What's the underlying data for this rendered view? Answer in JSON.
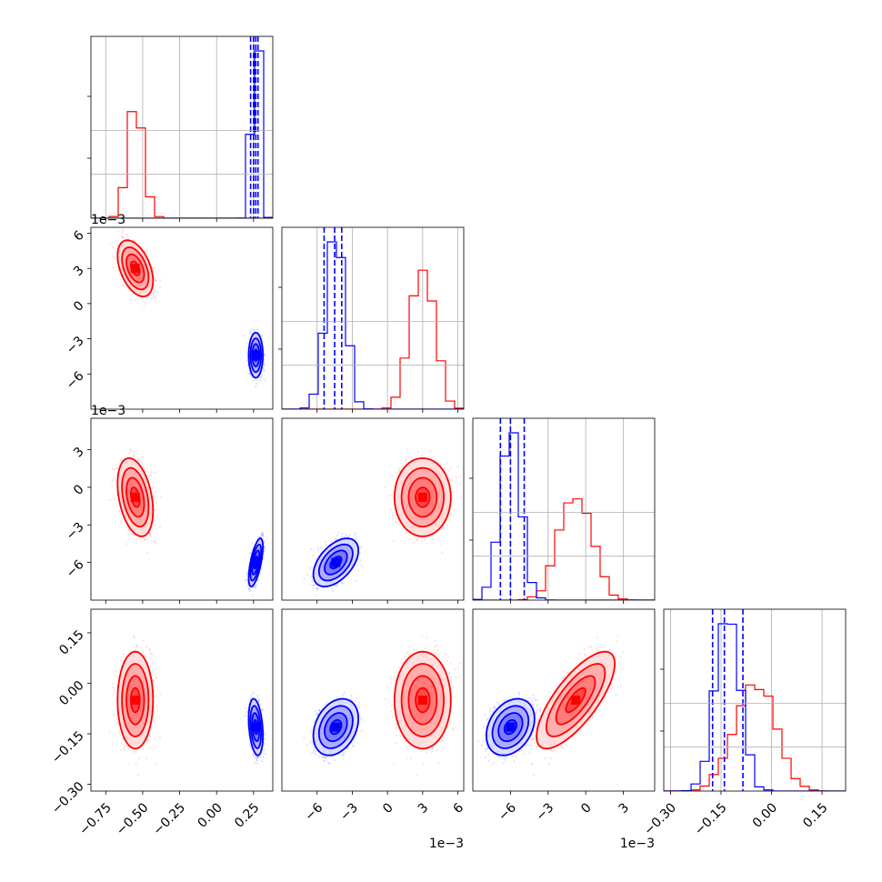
{
  "chart_data": {
    "type": "corner",
    "parameters": [
      {
        "id": "p0",
        "scale_label": "",
        "range": [
          -0.85,
          0.38
        ],
        "ticks": [
          -0.75,
          -0.5,
          -0.25,
          0.0,
          0.25
        ],
        "tick_labels": [
          "−0.75",
          "−0.50",
          "−0.25",
          "0.00",
          "0.25"
        ]
      },
      {
        "id": "p1",
        "scale_label": "1e−3",
        "range": [
          -9.0,
          6.5
        ],
        "ticks": [
          -6,
          -3,
          0,
          3,
          6
        ],
        "tick_labels": [
          "−6",
          "−3",
          "0",
          "3",
          "6"
        ]
      },
      {
        "id": "p2",
        "scale_label": "1e−3",
        "range": [
          -9.0,
          5.5
        ],
        "ticks": [
          -6,
          -3,
          0,
          3
        ],
        "tick_labels": [
          "−6",
          "−3",
          "0",
          "3"
        ]
      },
      {
        "id": "p3",
        "scale_label": "",
        "range": [
          -0.32,
          0.22
        ],
        "ticks": [
          -0.3,
          -0.15,
          0.0,
          0.15
        ],
        "tick_labels": [
          "−0.30",
          "−0.15",
          "0.00",
          "0.15"
        ]
      }
    ],
    "series": [
      {
        "color": "#ff0000",
        "means": [
          -0.55,
          3.0,
          -0.8,
          -0.05
        ],
        "sds": [
          0.05,
          1.0,
          1.3,
          0.06
        ],
        "correlations": [
          [
            1,
            -0.45,
            -0.35,
            0
          ],
          [
            -0.45,
            1,
            0,
            0
          ],
          [
            -0.35,
            0,
            1,
            0.75
          ],
          [
            0,
            0,
            0.75,
            1
          ]
        ]
      },
      {
        "color": "#0000ff",
        "means": [
          0.265,
          -4.4,
          -6.0,
          -0.13
        ],
        "sds": [
          0.02,
          0.8,
          0.8,
          0.035
        ],
        "correlations": [
          [
            1,
            0,
            0.65,
            -0.3
          ],
          [
            0,
            1,
            0.5,
            0.3
          ],
          [
            0.65,
            0.5,
            1,
            0.3
          ],
          [
            -0.3,
            0.3,
            0.3,
            1
          ]
        ]
      }
    ],
    "blue_quantile_lines": [
      [
        0.23,
        0.25,
        0.265,
        0.28
      ],
      [
        -5.4,
        -4.5,
        -3.9
      ],
      [
        -6.8,
        -6.0,
        -4.9
      ],
      [
        -0.175,
        -0.14,
        -0.085
      ]
    ],
    "grid": true
  }
}
